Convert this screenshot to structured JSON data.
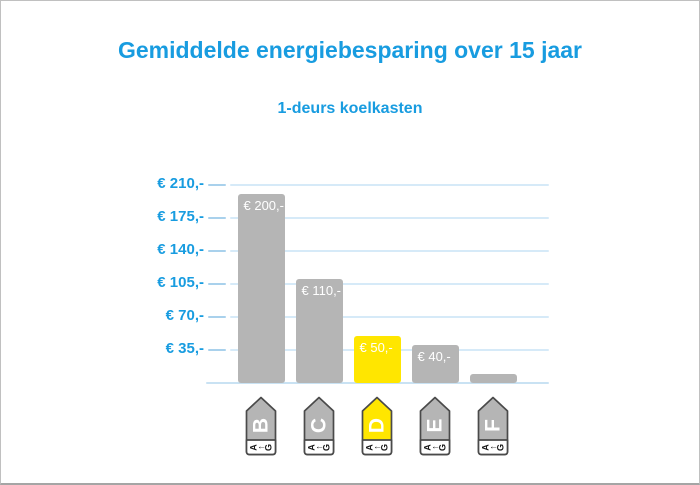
{
  "header": {
    "title": "Gemiddelde energiebesparing over 15 jaar",
    "subtitle": "1-deurs koelkasten"
  },
  "chart_data": {
    "type": "bar",
    "title": "Gemiddelde energiebesparing over 15 jaar",
    "subtitle": "1-deurs koelkasten",
    "categories": [
      "B",
      "C",
      "D",
      "E",
      "F"
    ],
    "values": [
      200,
      110,
      50,
      40,
      10
    ],
    "bar_labels": [
      "€ 200,-",
      "€ 110,-",
      "€ 50,-",
      "€ 40,-",
      ""
    ],
    "bar_colors": [
      "#b5b5b5",
      "#b5b5b5",
      "#ffe600",
      "#b5b5b5",
      "#b5b5b5"
    ],
    "xlabel": "",
    "ylabel": "",
    "ylim": [
      0,
      224
    ],
    "y_ticks": [
      {
        "value": 35,
        "label": "€ 35,-"
      },
      {
        "value": 70,
        "label": "€ 70,-"
      },
      {
        "value": 105,
        "label": "€ 105,-"
      },
      {
        "value": 140,
        "label": "€ 140,-"
      },
      {
        "value": 175,
        "label": "€ 175,-"
      },
      {
        "value": 210,
        "label": "€ 210,-"
      }
    ],
    "grid": true,
    "legend": false,
    "x_axis_note": "categories shown as EU energy-class arrow icons rotated to point up, each with A-to-G scale band"
  },
  "energy_icons": [
    {
      "letter": "B",
      "fill": "#b5b5b5",
      "scale_band": [
        "A",
        "↑",
        "G"
      ]
    },
    {
      "letter": "C",
      "fill": "#b5b5b5",
      "scale_band": [
        "A",
        "↑",
        "G"
      ]
    },
    {
      "letter": "D",
      "fill": "#ffe600",
      "scale_band": [
        "A",
        "↑",
        "G"
      ]
    },
    {
      "letter": "E",
      "fill": "#b5b5b5",
      "scale_band": [
        "A",
        "↑",
        "G"
      ]
    },
    {
      "letter": "F",
      "fill": "#b5b5b5",
      "scale_band": [
        "A",
        "↑",
        "G"
      ]
    }
  ],
  "colors": {
    "accent_blue": "#189ce0",
    "gridline": "#d6eaf8",
    "tick": "#a9d1ec",
    "baseline": "#c9e2f3",
    "bar_gray": "#b5b5b5",
    "bar_yellow": "#ffe600",
    "bar_value_text": "#ffffff",
    "icon_outline": "#4a4a4a",
    "icon_letter": "#ffffff",
    "icon_band_bg": "#ffffff",
    "icon_band_text": "#1a1a1a"
  }
}
